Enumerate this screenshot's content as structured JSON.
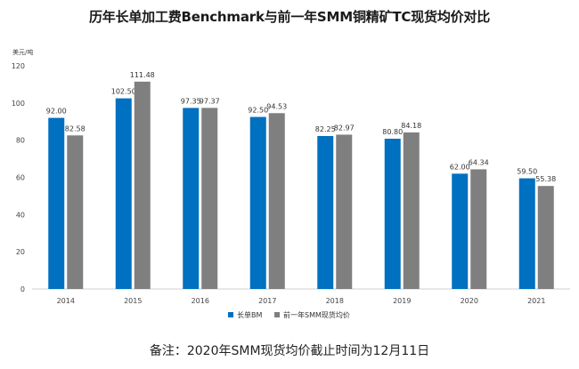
{
  "title": "历年长单加工费Benchmark与前一年SMM铜精矿TC现货均价对比",
  "footnote": "备注：2020年SMM现货均价截止时间为12月11日",
  "chart_data": {
    "type": "bar",
    "title": "历年长单加工费Benchmark与前一年SMM铜精矿TC现货均价对比",
    "ylabel": "美元/吨",
    "xlabel": "",
    "ylim": [
      0,
      120
    ],
    "yticks": [
      0,
      20,
      40,
      60,
      80,
      100,
      120
    ],
    "grid": false,
    "legend_position": "bottom",
    "categories": [
      "2014",
      "2015",
      "2016",
      "2017",
      "2018",
      "2019",
      "2020",
      "2021"
    ],
    "series": [
      {
        "name": "长单BM",
        "color": "#0070c0",
        "values": [
          92.0,
          102.5,
          97.35,
          92.5,
          82.25,
          80.8,
          62.0,
          59.5
        ],
        "labels": [
          "92.00",
          "102.50",
          "97.35",
          "92.50",
          "82.25",
          "80.80",
          "62.00",
          "59.50"
        ]
      },
      {
        "name": "前一年SMM现货均价",
        "color": "#7f7f7f",
        "values": [
          82.58,
          111.48,
          97.37,
          94.53,
          82.97,
          84.18,
          64.34,
          55.38
        ],
        "labels": [
          "82.58",
          "111.48",
          "97.37",
          "94.53",
          "82.97",
          "84.18",
          "64.34",
          "55.38"
        ]
      }
    ]
  }
}
